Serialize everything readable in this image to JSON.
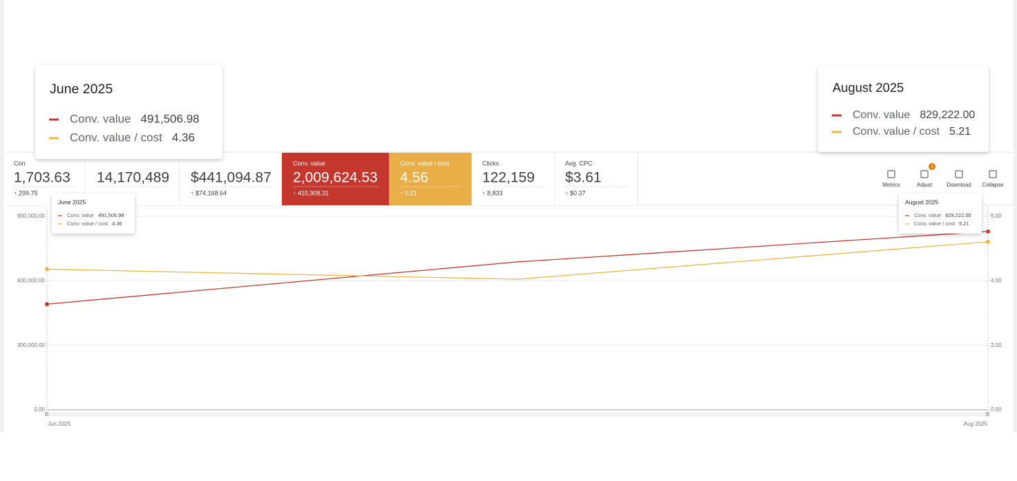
{
  "cards": [
    {
      "label": "Con",
      "value": "1,703.63",
      "delta": "↑ 299.75"
    },
    {
      "value": "14,170,489"
    },
    {
      "value": "$441,094.87",
      "delta": "↑ $74,168.64"
    },
    {
      "label": "Conv. value",
      "value": "2,009,624.53",
      "delta": "↑ 415,908.31"
    },
    {
      "label": "Conv. value / cost",
      "value": "4.56",
      "delta": "↑ 0.21"
    },
    {
      "label": "Clicks",
      "value": "122,159",
      "delta": "↑ 8,833"
    },
    {
      "label": "Avg. CPC",
      "value": "$3.61",
      "delta": "↑ $0.37"
    }
  ],
  "toolbar": [
    {
      "label": "Metrics"
    },
    {
      "label": "Adjust",
      "badge": 3
    },
    {
      "label": "Download"
    },
    {
      "label": "Collapse"
    }
  ],
  "tooltips": [
    {
      "title": "June 2025",
      "index": 0
    },
    {
      "title": "August 2025",
      "index": 2
    }
  ],
  "chart_data": {
    "type": "line",
    "categories": [
      "Jun 2025",
      null,
      "Aug 2025"
    ],
    "series": [
      {
        "name": "Conv. value",
        "color": "#c5372c",
        "values": [
          491506.98,
          688000,
          829222.0
        ],
        "value_labels": [
          "491,506.98",
          null,
          "829,222.00"
        ]
      },
      {
        "name": "Conv. value / cost",
        "color": "#f0b440",
        "axis": "y2",
        "values": [
          4.36,
          4.05,
          5.21
        ]
      }
    ],
    "ylim": [
      0,
      900000
    ],
    "yticks": [
      {
        "value": 0,
        "label": "0.00"
      },
      {
        "value": 300000,
        "label": "300,000.00"
      },
      {
        "value": 600000,
        "label": "600,000.00"
      },
      {
        "value": 900000,
        "label": "900,000.00"
      }
    ],
    "y2lim": [
      0,
      6
    ],
    "y2ticks": [
      {
        "value": 0,
        "label": "0.00"
      },
      {
        "value": 2,
        "label": "2.00"
      },
      {
        "value": 4,
        "label": "4.00"
      },
      {
        "value": 6,
        "label": "6.00"
      }
    ],
    "grid": true
  }
}
